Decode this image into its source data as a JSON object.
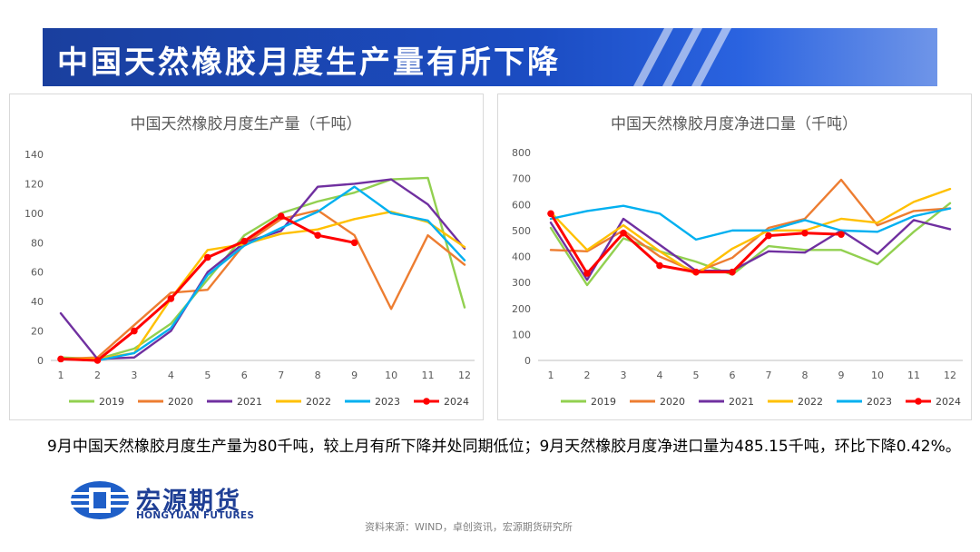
{
  "banner": {
    "title": "中国天然橡胶月度生产量有所下降"
  },
  "charts": [
    {
      "type": "line",
      "title": "中国天然橡胶月度生产量（千吨）",
      "categories": [
        "1",
        "2",
        "3",
        "4",
        "5",
        "6",
        "7",
        "8",
        "9",
        "10",
        "11",
        "12"
      ],
      "ylim": [
        0,
        140
      ],
      "yticks": [
        0,
        20,
        40,
        60,
        80,
        100,
        120,
        140
      ],
      "grid": false,
      "legend": "bottom",
      "series": [
        {
          "name": "2019",
          "color": "#92d050",
          "values": [
            2,
            1,
            8,
            25,
            55,
            85,
            100,
            108,
            114,
            123,
            124,
            36
          ]
        },
        {
          "name": "2020",
          "color": "#ed7d31",
          "values": [
            1,
            2,
            24,
            46,
            48,
            79,
            96,
            102,
            85,
            35,
            85,
            65
          ]
        },
        {
          "name": "2021",
          "color": "#7030a0",
          "values": [
            32,
            1,
            2,
            20,
            60,
            80,
            88,
            118,
            120,
            123,
            106,
            76
          ]
        },
        {
          "name": "2022",
          "color": "#ffc000",
          "values": [
            1,
            1,
            5,
            42,
            75,
            79,
            86,
            89,
            96,
            101,
            94,
            77
          ]
        },
        {
          "name": "2023",
          "color": "#00b0f0",
          "values": [
            1,
            0,
            5,
            22,
            58,
            78,
            90,
            101,
            118,
            100,
            95,
            68
          ]
        },
        {
          "name": "2024",
          "color": "#ff0000",
          "marker": true,
          "values": [
            1,
            0,
            20,
            42,
            70,
            81,
            98,
            85,
            80,
            null,
            null,
            null
          ]
        }
      ]
    },
    {
      "type": "line",
      "title": "中国天然橡胶月度净进口量（千吨）",
      "categories": [
        "1",
        "2",
        "3",
        "4",
        "5",
        "6",
        "7",
        "8",
        "9",
        "10",
        "11",
        "12"
      ],
      "ylim": [
        0,
        800
      ],
      "yticks": [
        0,
        100,
        200,
        300,
        400,
        500,
        600,
        700,
        800
      ],
      "grid": false,
      "legend": "bottom",
      "series": [
        {
          "name": "2019",
          "color": "#92d050",
          "values": [
            510,
            290,
            470,
            420,
            380,
            330,
            440,
            425,
            425,
            370,
            495,
            605
          ]
        },
        {
          "name": "2020",
          "color": "#ed7d31",
          "values": [
            425,
            420,
            500,
            400,
            340,
            395,
            510,
            545,
            695,
            520,
            575,
            585
          ]
        },
        {
          "name": "2021",
          "color": "#7030a0",
          "values": [
            530,
            310,
            545,
            445,
            345,
            345,
            420,
            415,
            500,
            410,
            540,
            505
          ]
        },
        {
          "name": "2022",
          "color": "#ffc000",
          "values": [
            570,
            425,
            520,
            420,
            330,
            430,
            500,
            500,
            545,
            530,
            610,
            660
          ]
        },
        {
          "name": "2023",
          "color": "#00b0f0",
          "values": [
            545,
            575,
            595,
            565,
            465,
            500,
            500,
            540,
            500,
            495,
            555,
            585
          ]
        },
        {
          "name": "2024",
          "color": "#ff0000",
          "marker": true,
          "values": [
            565,
            335,
            490,
            365,
            340,
            340,
            480,
            490,
            485,
            null,
            null,
            null
          ]
        }
      ]
    }
  ],
  "summary": "9月中国天然橡胶月度生产量为80千吨，较上月有所下降并处同期低位；9月天然橡胶月度净进口量为485.15千吨，环比下降0.42%。",
  "logo": {
    "cn": "宏源期货",
    "en": "HONGYUAN FUTURES"
  },
  "source": "资料来源：WIND，卓创资讯，宏源期货研究所"
}
